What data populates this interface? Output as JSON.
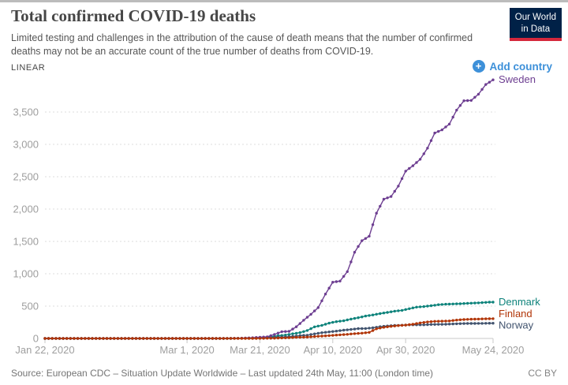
{
  "header": {
    "title": "Total confirmed COVID-19 deaths",
    "subtitle": "Limited testing and challenges in the attribution of the cause of death means that the number of confirmed deaths may not be an accurate count of the true number of deaths from COVID-19.",
    "logo": {
      "line1": "Our World",
      "line2": "in Data"
    }
  },
  "controls": {
    "scale_label": "LINEAR",
    "add_country_label": "Add country",
    "plus_icon": "+"
  },
  "footer": {
    "source": "Source: European CDC – Situation Update Worldwide – Last updated 24th May, 11:00 (London time)",
    "license": "CC BY"
  },
  "colors": {
    "accent_blue": "#3d90d9",
    "logo_navy": "#002147",
    "logo_red": "#d5283c",
    "grid": "#dcdcdc",
    "axis": "#c8c8c8",
    "tick_text": "#9e9e9e"
  },
  "chart_data": {
    "type": "line",
    "title": "Total confirmed COVID-19 deaths",
    "x_axis": {
      "start_day": 0,
      "end_day": 123,
      "ticks": [
        {
          "label": "Jan 22, 2020",
          "day": 0
        },
        {
          "label": "Mar 1, 2020",
          "day": 39
        },
        {
          "label": "Mar 21, 2020",
          "day": 59
        },
        {
          "label": "Apr 10, 2020",
          "day": 79
        },
        {
          "label": "Apr 30, 2020",
          "day": 99
        },
        {
          "label": "May 24, 2020",
          "day": 123
        }
      ]
    },
    "y_axis": {
      "ticks": [
        0,
        500,
        1000,
        1500,
        2000,
        2500,
        3000,
        3500
      ],
      "ylim": [
        0,
        4100
      ],
      "gridlines": "dashed"
    },
    "legend_position": "right-end-labels",
    "series": [
      {
        "name": "Denmark",
        "color": "#0e837b",
        "label_dy": 0,
        "points": [
          [
            0,
            0
          ],
          [
            51,
            0
          ],
          [
            52,
            1
          ],
          [
            54,
            3
          ],
          [
            56,
            4
          ],
          [
            58,
            6
          ],
          [
            60,
            13
          ],
          [
            62,
            24
          ],
          [
            64,
            41
          ],
          [
            66,
            52
          ],
          [
            68,
            72
          ],
          [
            70,
            90
          ],
          [
            72,
            123
          ],
          [
            74,
            179
          ],
          [
            76,
            203
          ],
          [
            78,
            237
          ],
          [
            80,
            260
          ],
          [
            82,
            273
          ],
          [
            84,
            299
          ],
          [
            86,
            321
          ],
          [
            88,
            346
          ],
          [
            90,
            364
          ],
          [
            92,
            384
          ],
          [
            94,
            403
          ],
          [
            96,
            422
          ],
          [
            98,
            434
          ],
          [
            100,
            460
          ],
          [
            102,
            484
          ],
          [
            104,
            493
          ],
          [
            106,
            506
          ],
          [
            108,
            522
          ],
          [
            110,
            529
          ],
          [
            112,
            533
          ],
          [
            114,
            537
          ],
          [
            116,
            543
          ],
          [
            118,
            547
          ],
          [
            120,
            554
          ],
          [
            122,
            561
          ],
          [
            123,
            561
          ]
        ]
      },
      {
        "name": "Norway",
        "color": "#41536e",
        "label_dy": 3,
        "points": [
          [
            0,
            0
          ],
          [
            49,
            0
          ],
          [
            50,
            1
          ],
          [
            52,
            3
          ],
          [
            54,
            3
          ],
          [
            56,
            6
          ],
          [
            58,
            7
          ],
          [
            60,
            10
          ],
          [
            62,
            14
          ],
          [
            64,
            21
          ],
          [
            66,
            23
          ],
          [
            68,
            32
          ],
          [
            70,
            44
          ],
          [
            72,
            50
          ],
          [
            74,
            71
          ],
          [
            76,
            89
          ],
          [
            78,
            101
          ],
          [
            80,
            114
          ],
          [
            82,
            128
          ],
          [
            84,
            139
          ],
          [
            86,
            152
          ],
          [
            88,
            154
          ],
          [
            90,
            165
          ],
          [
            92,
            182
          ],
          [
            94,
            193
          ],
          [
            96,
            201
          ],
          [
            98,
            205
          ],
          [
            100,
            210
          ],
          [
            102,
            211
          ],
          [
            104,
            211
          ],
          [
            106,
            216
          ],
          [
            108,
            218
          ],
          [
            110,
            219
          ],
          [
            112,
            224
          ],
          [
            114,
            229
          ],
          [
            116,
            232
          ],
          [
            118,
            232
          ],
          [
            120,
            233
          ],
          [
            122,
            235
          ],
          [
            123,
            235
          ]
        ]
      },
      {
        "name": "Sweden",
        "color": "#6d3e91",
        "label_dy": 0,
        "points": [
          [
            0,
            0
          ],
          [
            48,
            0
          ],
          [
            49,
            1
          ],
          [
            51,
            1
          ],
          [
            53,
            3
          ],
          [
            55,
            7
          ],
          [
            57,
            11
          ],
          [
            59,
            20
          ],
          [
            61,
            25
          ],
          [
            63,
            62
          ],
          [
            65,
            105
          ],
          [
            67,
            110
          ],
          [
            69,
            180
          ],
          [
            71,
            282
          ],
          [
            73,
            373
          ],
          [
            75,
            477
          ],
          [
            77,
            687
          ],
          [
            79,
            870
          ],
          [
            81,
            887
          ],
          [
            83,
            1033
          ],
          [
            85,
            1333
          ],
          [
            87,
            1511
          ],
          [
            89,
            1580
          ],
          [
            91,
            1937
          ],
          [
            93,
            2152
          ],
          [
            95,
            2194
          ],
          [
            97,
            2355
          ],
          [
            99,
            2586
          ],
          [
            101,
            2669
          ],
          [
            103,
            2769
          ],
          [
            105,
            2941
          ],
          [
            107,
            3175
          ],
          [
            109,
            3225
          ],
          [
            111,
            3313
          ],
          [
            113,
            3529
          ],
          [
            115,
            3674
          ],
          [
            117,
            3679
          ],
          [
            119,
            3776
          ],
          [
            121,
            3925
          ],
          [
            123,
            3998
          ]
        ]
      },
      {
        "name": "Finland",
        "color": "#b13507",
        "label_dy": -6,
        "points": [
          [
            0,
            0
          ],
          [
            58,
            0
          ],
          [
            59,
            1
          ],
          [
            61,
            2
          ],
          [
            63,
            4
          ],
          [
            65,
            7
          ],
          [
            67,
            11
          ],
          [
            69,
            17
          ],
          [
            71,
            20
          ],
          [
            73,
            25
          ],
          [
            75,
            34
          ],
          [
            77,
            40
          ],
          [
            79,
            48
          ],
          [
            81,
            56
          ],
          [
            83,
            64
          ],
          [
            85,
            75
          ],
          [
            87,
            82
          ],
          [
            89,
            94
          ],
          [
            91,
            149
          ],
          [
            93,
            172
          ],
          [
            95,
            186
          ],
          [
            97,
            199
          ],
          [
            99,
            206
          ],
          [
            101,
            220
          ],
          [
            103,
            240
          ],
          [
            105,
            255
          ],
          [
            107,
            265
          ],
          [
            109,
            267
          ],
          [
            111,
            271
          ],
          [
            113,
            284
          ],
          [
            115,
            293
          ],
          [
            117,
            297
          ],
          [
            119,
            300
          ],
          [
            121,
            304
          ],
          [
            123,
            306
          ]
        ]
      }
    ]
  }
}
